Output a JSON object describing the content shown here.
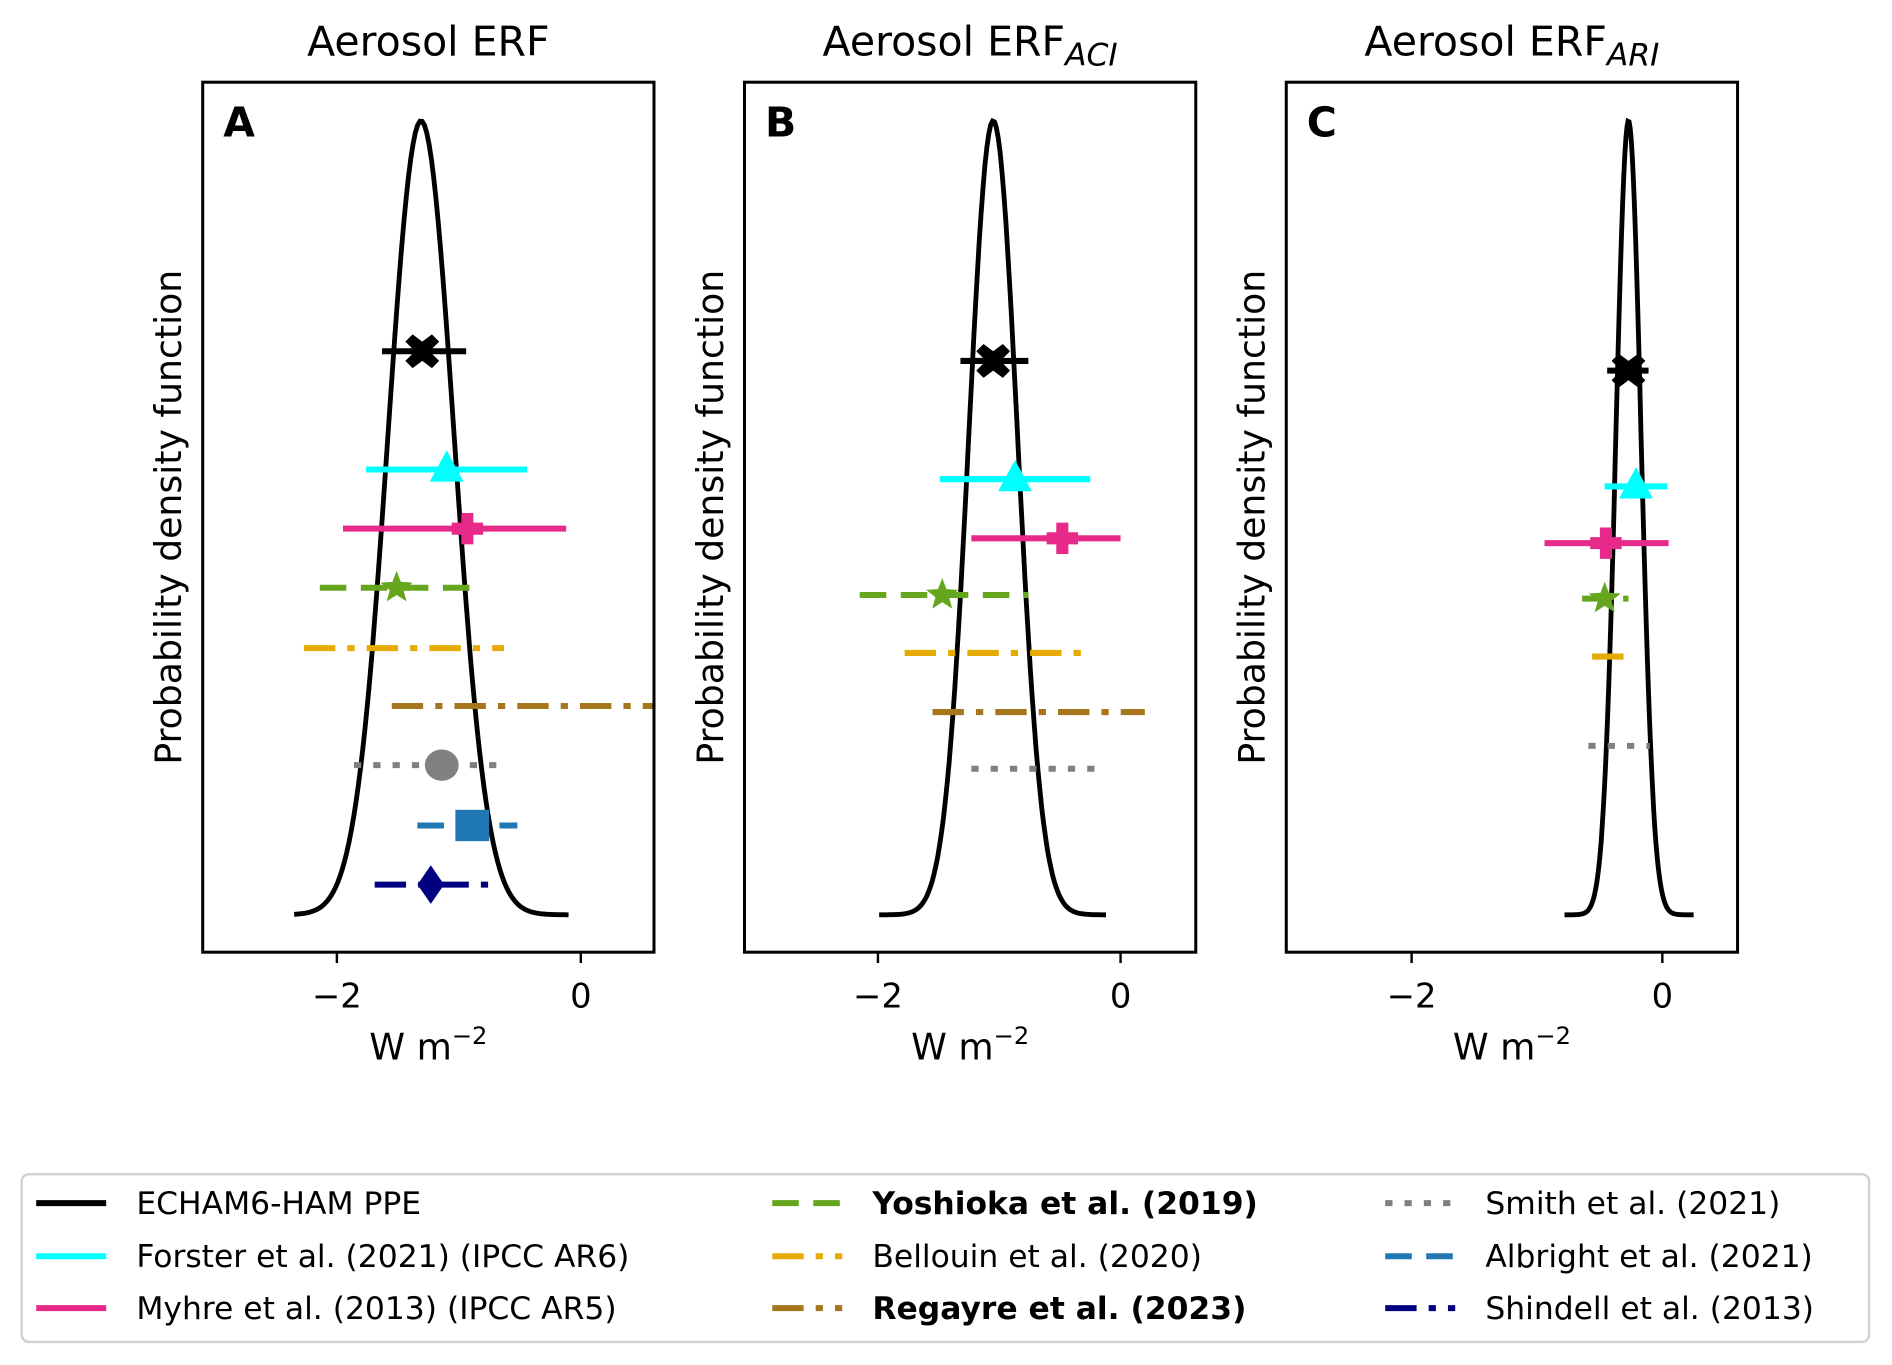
{
  "chart_data": [
    {
      "type": "line",
      "panel_label": "A",
      "title": "Aerosol ERF",
      "title_sub": "",
      "xlabel": "W m",
      "xlabel_sup": "−2",
      "ylabel": "Probability density function",
      "xlim": [
        -3.1,
        0.6
      ],
      "xticks": [
        {
          "value": -2,
          "label": "−2"
        },
        {
          "value": 0,
          "label": "0"
        }
      ],
      "pdf": {
        "series": "ECHAM6-HAM PPE",
        "mode": -1.31,
        "sd": 0.27,
        "range": [
          -2.35,
          -0.1
        ]
      },
      "estimates": [
        {
          "name": "ECHAM6-HAM PPE",
          "low": -1.63,
          "high": -0.94,
          "best": -1.3
        },
        {
          "name": "Forster et al. (2021) (IPCC AR6)",
          "low": -1.76,
          "high": -0.44,
          "best": -1.1
        },
        {
          "name": "Myhre et al. (2013) (IPCC AR5)",
          "low": -1.95,
          "high": -0.12,
          "best": -0.93
        },
        {
          "name": "Yoshioka et al. (2019)",
          "low": -2.14,
          "high": -0.88,
          "best": -1.51
        },
        {
          "name": "Bellouin et al. (2020)",
          "low": -2.27,
          "high": -0.63,
          "best": null
        },
        {
          "name": "Regayre et al. (2023)",
          "low": -1.55,
          "high": 0.6,
          "best": null
        },
        {
          "name": "Smith et al. (2021)",
          "low": -1.86,
          "high": -0.6,
          "best": -1.14
        },
        {
          "name": "Albright et al. (2021)",
          "low": -1.34,
          "high": -0.52,
          "best": -0.89
        },
        {
          "name": "Shindell et al. (2013)",
          "low": -1.69,
          "high": -0.72,
          "best": -1.23
        }
      ]
    },
    {
      "type": "line",
      "panel_label": "B",
      "title": "Aerosol ERF",
      "title_sub": "ACI",
      "xlabel": "W m",
      "xlabel_sup": "−2",
      "ylabel": "Probability density function",
      "xlim": [
        -3.1,
        0.62
      ],
      "xticks": [
        {
          "value": -2,
          "label": "−2"
        },
        {
          "value": 0,
          "label": "0"
        }
      ],
      "pdf": {
        "series": "ECHAM6-HAM PPE",
        "mode": -1.05,
        "sd": 0.2,
        "range": [
          -1.99,
          -0.12
        ]
      },
      "estimates": [
        {
          "name": "ECHAM6-HAM PPE",
          "low": -1.32,
          "high": -0.76,
          "best": -1.05
        },
        {
          "name": "Forster et al. (2021) (IPCC AR6)",
          "low": -1.49,
          "high": -0.25,
          "best": -0.87
        },
        {
          "name": "Myhre et al. (2013) (IPCC AR5)",
          "low": -1.23,
          "high": 0.0,
          "best": -0.48
        },
        {
          "name": "Yoshioka et al. (2019)",
          "low": -2.15,
          "high": -0.76,
          "best": -1.47
        },
        {
          "name": "Bellouin et al. (2020)",
          "low": -1.78,
          "high": -0.27,
          "best": null
        },
        {
          "name": "Regayre et al. (2023)",
          "low": -1.55,
          "high": 0.2,
          "best": null
        },
        {
          "name": "Smith et al. (2021)",
          "low": -1.23,
          "high": -0.14,
          "best": null
        }
      ]
    },
    {
      "type": "line",
      "panel_label": "C",
      "title": "Aerosol ERF",
      "title_sub": "ARI",
      "xlabel": "W m",
      "xlabel_sup": "−2",
      "ylabel": "Probability density function",
      "xlim": [
        -3.0,
        0.6
      ],
      "xticks": [
        {
          "value": -2,
          "label": "−2"
        },
        {
          "value": 0,
          "label": "0"
        }
      ],
      "pdf": {
        "series": "ECHAM6-HAM PPE",
        "mode": -0.27,
        "sd": 0.1,
        "range": [
          -0.78,
          0.25
        ]
      },
      "estimates": [
        {
          "name": "ECHAM6-HAM PPE",
          "low": -0.44,
          "high": -0.11,
          "best": -0.27
        },
        {
          "name": "Forster et al. (2021) (IPCC AR6)",
          "low": -0.46,
          "high": 0.04,
          "best": -0.21
        },
        {
          "name": "Myhre et al. (2013) (IPCC AR5)",
          "low": -0.94,
          "high": 0.05,
          "best": -0.45
        },
        {
          "name": "Yoshioka et al. (2019)",
          "low": -0.64,
          "high": -0.27,
          "best": -0.46
        },
        {
          "name": "Bellouin et al. (2020)",
          "low": -0.56,
          "high": -0.22,
          "best": null
        },
        {
          "name": "Smith et al. (2021)",
          "low": -0.59,
          "high": -0.1,
          "best": null
        }
      ]
    }
  ],
  "legend": {
    "placement": "bottom",
    "entries": [
      {
        "label": "ECHAM6-HAM PPE",
        "color": "#000000",
        "style": "solid",
        "marker": "x"
      },
      {
        "label": "Forster et al. (2021) (IPCC AR6)",
        "color": "#00ffff",
        "style": "solid",
        "marker": "triangle"
      },
      {
        "label": "Myhre et al. (2013) (IPCC AR5)",
        "color": "#e7298a",
        "style": "solid",
        "marker": "plus"
      },
      {
        "label": "Yoshioka et al. (2019)",
        "color": "#66a61e",
        "style": "dashed",
        "marker": "star",
        "bold": true
      },
      {
        "label": "Bellouin et al. (2020)",
        "color": "#e6ab02",
        "style": "dashdot",
        "marker": "none"
      },
      {
        "label": "Regayre et al. (2023)",
        "color": "#a6761d",
        "style": "dashdot",
        "marker": "none",
        "bold": true
      },
      {
        "label": "Smith et al. (2021)",
        "color": "#808080",
        "style": "dotted",
        "marker": "circle"
      },
      {
        "label": "Albright et al. (2021)",
        "color": "#1f78b4",
        "style": "dashed",
        "marker": "square"
      },
      {
        "label": "Shindell et al. (2013)",
        "color": "#000080",
        "style": "dashdot",
        "marker": "diamond"
      }
    ]
  }
}
